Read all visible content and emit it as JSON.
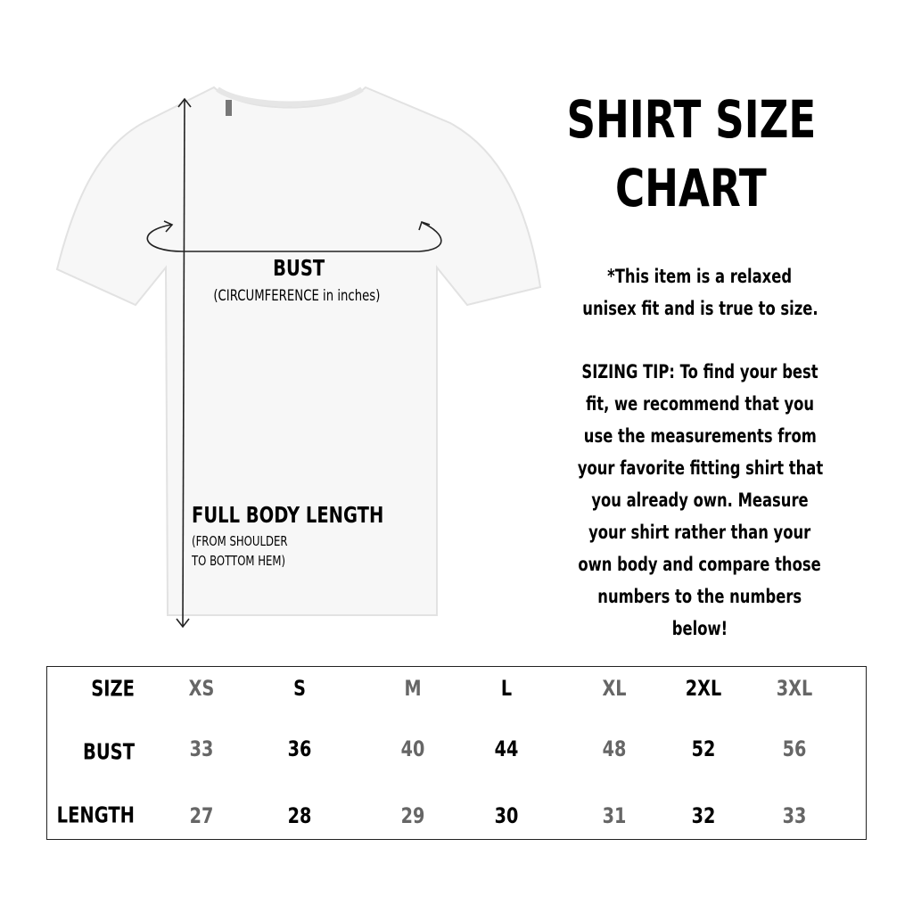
{
  "title_lines": [
    "SHIRT SIZE",
    "CHART"
  ],
  "fit_note_lines": [
    "*This item is a relaxed",
    "unisex fit and is true to size."
  ],
  "sizing_tip_lines": [
    "SIZING TIP: To find your best",
    "fit, we recommend that you",
    "use the measurements from",
    "your favorite fitting shirt that",
    "you already own. Measure",
    "your shirt rather than your",
    "own body and compare those",
    "numbers to the numbers",
    "below!"
  ],
  "diagram": {
    "bust_label": "BUST",
    "bust_sub": "(CIRCUMFERENCE in inches)",
    "length_label": "FULL BODY LENGTH",
    "length_sub_lines": [
      "(FROM SHOULDER",
      "TO BOTTOM HEM)"
    ]
  },
  "table": {
    "row_labels": [
      "SIZE",
      "BUST",
      "LENGTH"
    ],
    "sizes": [
      "XS",
      "S",
      "M",
      "L",
      "XL",
      "2XL",
      "3XL"
    ],
    "bust": [
      "33",
      "36",
      "40",
      "44",
      "48",
      "52",
      "56"
    ],
    "length": [
      "27",
      "28",
      "29",
      "30",
      "31",
      "32",
      "33"
    ],
    "column_colors": [
      "#666666",
      "#000000",
      "#666666",
      "#000000",
      "#666666",
      "#000000",
      "#666666"
    ]
  }
}
